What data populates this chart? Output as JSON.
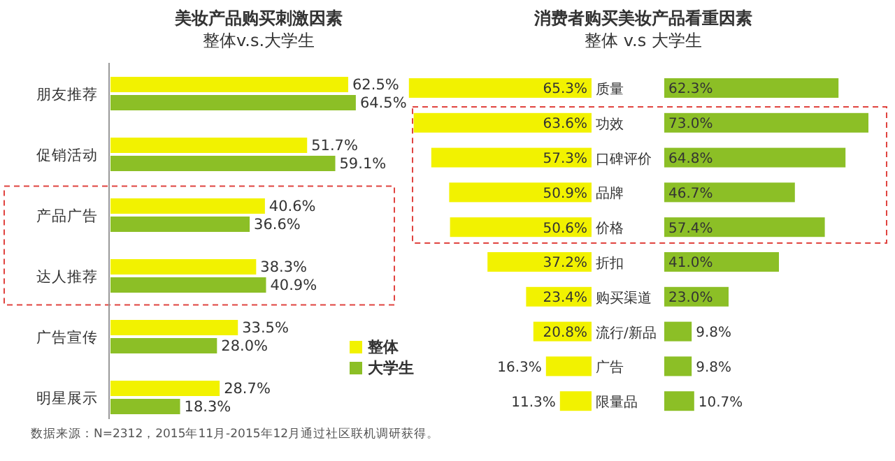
{
  "chart_data": [
    {
      "type": "bar",
      "orientation": "horizontal",
      "title": "美妆产品购买刺激因素",
      "subtitle": "整体v.s.大学生",
      "categories": [
        "朋友推荐",
        "促销活动",
        "产品广告",
        "达人推荐",
        "广告宣传",
        "明星展示"
      ],
      "series": [
        {
          "name": "整体",
          "color": "#f2f200",
          "values": [
            62.5,
            51.7,
            40.6,
            38.3,
            33.5,
            28.7
          ],
          "value_labels": [
            "62.5%",
            "51.7%",
            "40.6%",
            "38.3%",
            "33.5%",
            "28.7%"
          ]
        },
        {
          "name": "大学生",
          "color": "#8cbf26",
          "values": [
            64.5,
            59.1,
            36.6,
            40.9,
            28.0,
            18.3
          ],
          "value_labels": [
            "64.5%",
            "59.1%",
            "36.6%",
            "40.9%",
            "28.0%",
            "18.3%"
          ]
        }
      ],
      "legend": "bottom right",
      "annotations": [
        "数据来源：N=2312，2015年11月-2015年12月通过社区联机调研获得。"
      ]
    },
    {
      "type": "bar",
      "orientation": "horizontal",
      "title": "消费者购买美妆产品看重因素",
      "subtitle": "整体 v.s 大学生",
      "categories": [
        "质量",
        "功效",
        "口碑评价",
        "品牌",
        "价格",
        "折扣",
        "购买渠道",
        "流行/新品",
        "广告",
        "限量品"
      ],
      "series": [
        {
          "color": "#f2f200",
          "values": [
            65.3,
            63.6,
            57.3,
            50.9,
            50.6,
            37.2,
            23.4,
            20.8,
            16.3,
            11.3
          ],
          "value_labels": [
            "65.3%",
            "63.6%",
            "57.3%",
            "50.9%",
            "50.6%",
            "37.2%",
            "23.4%",
            "20.8%",
            "16.3%",
            "11.3%"
          ]
        }
      ]
    },
    {
      "type": "bar",
      "orientation": "horizontal",
      "categories": [
        null,
        null,
        null,
        null,
        null,
        null,
        null,
        null,
        null,
        null
      ],
      "series": [
        {
          "color": "#8cbf26",
          "values": [
            62.3,
            73.0,
            64.8,
            46.7,
            57.4,
            41.0,
            23.0,
            9.8,
            9.8,
            10.7
          ],
          "value_labels": [
            "62.3%",
            "73.0%",
            "64.8%",
            "46.7%",
            "57.4%",
            "41.0%",
            "23.0%",
            "9.8%",
            "9.8%",
            "10.7%"
          ]
        }
      ]
    }
  ]
}
